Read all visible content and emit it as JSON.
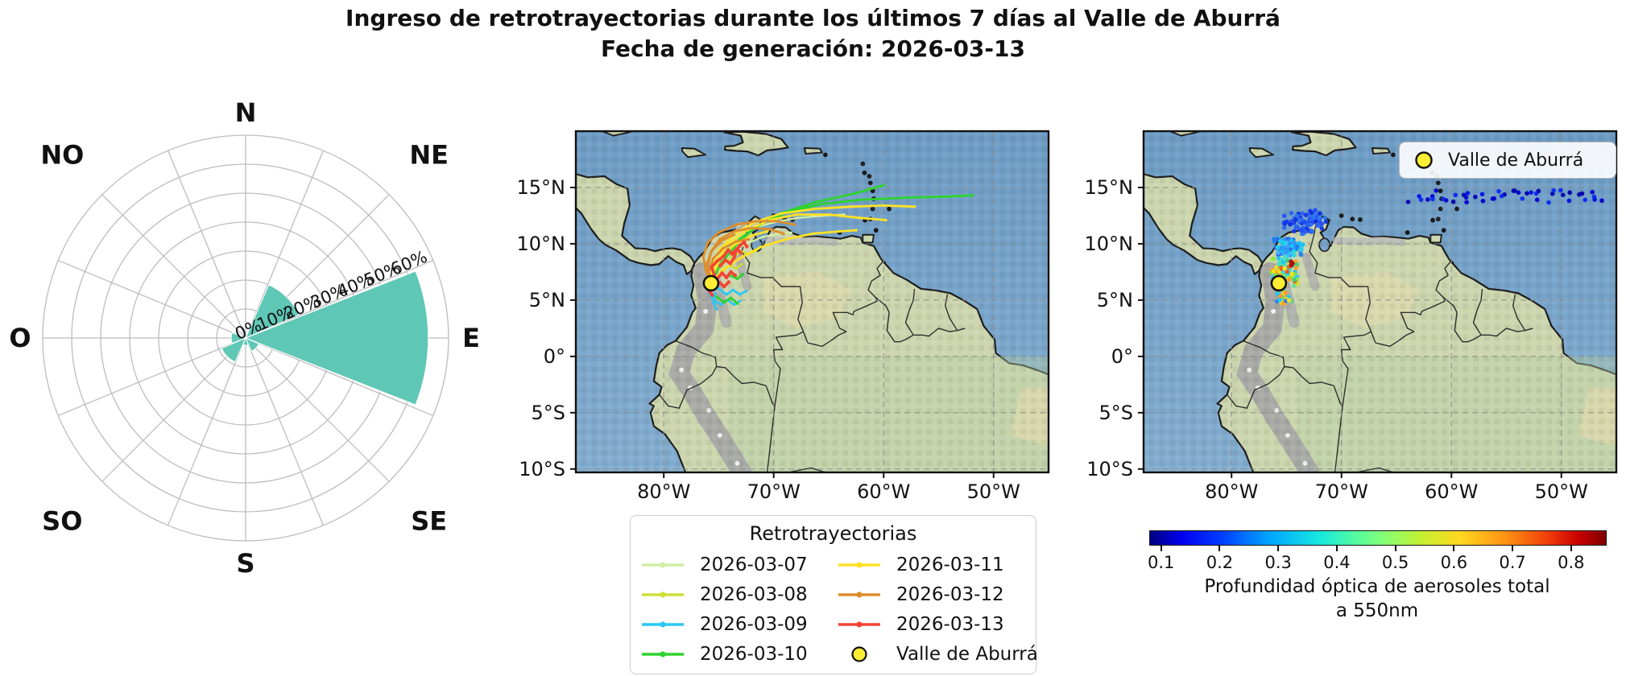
{
  "header": {
    "title_line1": "Ingreso de retrotrayectorias durante los últimos 7 días al Valle de Aburrá",
    "title_line2": "Fecha de generación: 2026-03-13"
  },
  "colors": {
    "rose_petal": "#5fc7b5",
    "ocean_top": "#6d9cc5",
    "ocean_bottom": "#83adcf",
    "land": "#ccd6ae",
    "marker_yellow": "#ffee33",
    "grid_gray": "#999999"
  },
  "chart_data": [
    {
      "type": "windrose",
      "direction_labels": [
        "N",
        "NE",
        "E",
        "SE",
        "S",
        "SO",
        "O",
        "NO"
      ],
      "ring_labels": [
        "0%",
        "10%",
        "20%",
        "30%",
        "40%",
        "50%",
        "60%"
      ],
      "ring_step_pct": 10,
      "values_pct": {
        "N": 0,
        "NE": 20,
        "E": 63,
        "SE": 5,
        "S": 2.5,
        "SO": 9,
        "O": 5,
        "NO": 0
      },
      "petal_color": "#5fc7b5",
      "legend_position": "radial labels along ENE spoke"
    },
    {
      "type": "map-trajectories",
      "legend_title": "Retrotrayectorias",
      "marker": {
        "label": "Valle de Aburrá",
        "lon": -75.7,
        "lat": 6.5,
        "color": "#ffee33"
      },
      "xticks": [
        {
          "label": "80°W",
          "lon": -80
        },
        {
          "label": "70°W",
          "lon": -70
        },
        {
          "label": "60°W",
          "lon": -60
        },
        {
          "label": "50°W",
          "lon": -50
        }
      ],
      "yticks": [
        {
          "label": "15°N",
          "lat": 15
        },
        {
          "label": "10°N",
          "lat": 10
        },
        {
          "label": "5°N",
          "lat": 5
        },
        {
          "label": "0°",
          "lat": 0
        },
        {
          "label": "5°S",
          "lat": -5
        },
        {
          "label": "10°S",
          "lat": -10
        }
      ],
      "extent": {
        "lon_west": -88,
        "lon_east": -45,
        "lat_north": 20,
        "lat_south": -10.3
      },
      "series": [
        {
          "label": "2026-03-07",
          "color": "#d2eda4",
          "width": 2.4,
          "paths": [
            [
              [
                -75.7,
                6.5
              ],
              [
                -75.6,
                7.9
              ],
              [
                -75.0,
                9.3
              ],
              [
                -73.8,
                10.5
              ],
              [
                -72.2,
                11.3
              ],
              [
                -70.0,
                11.9
              ],
              [
                -67.8,
                12.3
              ],
              [
                -65.5,
                12.5
              ],
              [
                -63.6,
                12.6
              ]
            ],
            [
              [
                -75.7,
                6.5
              ],
              [
                -75.0,
                8.0
              ],
              [
                -73.9,
                9.2
              ],
              [
                -72.5,
                10.0
              ],
              [
                -71.0,
                10.6
              ],
              [
                -69.6,
                10.9
              ],
              [
                -68.4,
                11.0
              ]
            ]
          ]
        },
        {
          "label": "2026-03-08",
          "color": "#cddd3a",
          "width": 2.6,
          "paths": [
            [
              [
                -75.7,
                6.5
              ],
              [
                -75.2,
                7.5
              ],
              [
                -74.5,
                8.3
              ],
              [
                -73.7,
                8.9
              ],
              [
                -72.9,
                9.3
              ],
              [
                -72.2,
                9.1
              ],
              [
                -71.6,
                9.4
              ]
            ],
            [
              [
                -74.6,
                7.6
              ],
              [
                -74.0,
                8.1
              ],
              [
                -73.4,
                7.8
              ],
              [
                -72.9,
                8.2
              ]
            ]
          ]
        },
        {
          "label": "2026-03-09",
          "color": "#2bc8f5",
          "width": 2.8,
          "paths": [
            [
              [
                -75.7,
                6.5
              ],
              [
                -75.9,
                5.7
              ],
              [
                -75.5,
                5.0
              ],
              [
                -74.8,
                4.6
              ],
              [
                -74.2,
                5.0
              ],
              [
                -73.6,
                4.6
              ],
              [
                -73.1,
                4.9
              ]
            ],
            [
              [
                -75.7,
                6.5
              ],
              [
                -75.0,
                6.0
              ],
              [
                -74.3,
                5.5
              ],
              [
                -73.7,
                5.9
              ],
              [
                -73.1,
                5.5
              ],
              [
                -72.5,
                5.8
              ]
            ],
            [
              [
                -75.3,
                5.6
              ],
              [
                -75.5,
                4.8
              ],
              [
                -75.2,
                4.2
              ]
            ]
          ]
        },
        {
          "label": "2026-03-10",
          "color": "#2ed32e",
          "width": 2.8,
          "paths": [
            [
              [
                -75.7,
                6.5
              ],
              [
                -75.3,
                7.9
              ],
              [
                -74.4,
                9.2
              ],
              [
                -73.1,
                10.4
              ],
              [
                -71.3,
                11.7
              ],
              [
                -68.8,
                12.8
              ],
              [
                -65.8,
                13.5
              ],
              [
                -62.2,
                13.9
              ],
              [
                -58.0,
                14.1
              ],
              [
                -54.0,
                14.2
              ],
              [
                -51.9,
                14.3
              ]
            ],
            [
              [
                -75.7,
                6.5
              ],
              [
                -74.9,
                8.1
              ],
              [
                -73.6,
                9.7
              ],
              [
                -71.9,
                11.3
              ],
              [
                -69.4,
                12.7
              ],
              [
                -66.2,
                13.7
              ],
              [
                -62.5,
                14.5
              ],
              [
                -60.0,
                15.2
              ]
            ],
            [
              [
                -75.2,
                5.3
              ],
              [
                -74.5,
                4.8
              ],
              [
                -73.9,
                5.2
              ],
              [
                -73.3,
                4.7
              ]
            ],
            [
              [
                -74.0,
                7.2
              ],
              [
                -73.3,
                6.9
              ],
              [
                -72.8,
                7.3
              ]
            ]
          ]
        },
        {
          "label": "2026-03-11",
          "color": "#ffe226",
          "width": 2.8,
          "paths": [
            [
              [
                -75.7,
                6.5
              ],
              [
                -75.6,
                8.1
              ],
              [
                -74.9,
                9.5
              ],
              [
                -73.6,
                10.8
              ],
              [
                -71.8,
                11.9
              ],
              [
                -69.3,
                12.7
              ],
              [
                -66.3,
                13.1
              ],
              [
                -63.0,
                13.3
              ],
              [
                -60.0,
                13.4
              ],
              [
                -57.2,
                13.3
              ]
            ],
            [
              [
                -75.7,
                6.5
              ],
              [
                -75.2,
                8.4
              ],
              [
                -74.2,
                9.9
              ],
              [
                -72.6,
                11.1
              ],
              [
                -70.4,
                12.1
              ],
              [
                -67.9,
                12.6
              ],
              [
                -65.0,
                12.6
              ],
              [
                -62.2,
                12.3
              ],
              [
                -59.8,
                12.1
              ]
            ],
            [
              [
                -75.7,
                6.5
              ],
              [
                -74.6,
                7.7
              ],
              [
                -73.1,
                8.7
              ],
              [
                -71.2,
                9.7
              ],
              [
                -68.9,
                10.4
              ],
              [
                -66.4,
                10.9
              ],
              [
                -64.0,
                11.1
              ],
              [
                -62.5,
                11.2
              ]
            ],
            [
              [
                -75.5,
                7.4
              ],
              [
                -74.8,
                8.8
              ],
              [
                -73.6,
                9.9
              ],
              [
                -72.1,
                10.7
              ],
              [
                -70.6,
                11.1
              ]
            ]
          ]
        },
        {
          "label": "2026-03-12",
          "color": "#dd8e2c",
          "width": 2.8,
          "paths": [
            [
              [
                -75.7,
                6.5
              ],
              [
                -76.2,
                7.7
              ],
              [
                -76.4,
                8.9
              ],
              [
                -76.0,
                10.1
              ],
              [
                -75.0,
                11.0
              ],
              [
                -73.4,
                11.7
              ],
              [
                -71.6,
                12.0
              ],
              [
                -69.7,
                12.0
              ],
              [
                -68.1,
                11.7
              ]
            ],
            [
              [
                -75.7,
                6.5
              ],
              [
                -76.0,
                7.9
              ],
              [
                -75.7,
                9.3
              ],
              [
                -74.9,
                10.4
              ],
              [
                -73.6,
                11.1
              ],
              [
                -72.0,
                11.4
              ],
              [
                -70.4,
                11.3
              ],
              [
                -69.1,
                10.9
              ]
            ],
            [
              [
                -75.7,
                6.5
              ],
              [
                -75.9,
                7.4
              ],
              [
                -75.5,
                8.7
              ],
              [
                -74.6,
                9.6
              ],
              [
                -73.4,
                10.2
              ],
              [
                -72.3,
                10.4
              ]
            ],
            [
              [
                -76.1,
                8.2
              ],
              [
                -75.6,
                9.4
              ],
              [
                -74.7,
                10.3
              ],
              [
                -73.6,
                10.8
              ]
            ]
          ]
        },
        {
          "label": "2026-03-13",
          "color": "#f44336",
          "width": 3.6,
          "paths": [
            [
              [
                -75.7,
                6.5
              ],
              [
                -75.4,
                7.2
              ],
              [
                -75.65,
                7.95
              ],
              [
                -75.1,
                8.5
              ],
              [
                -74.55,
                8.9
              ],
              [
                -74.15,
                9.45
              ],
              [
                -73.8,
                9.1
              ],
              [
                -73.35,
                9.55
              ],
              [
                -73.0,
                9.2
              ]
            ],
            [
              [
                -75.7,
                6.5
              ],
              [
                -75.15,
                6.9
              ],
              [
                -74.7,
                7.4
              ],
              [
                -74.3,
                7.0
              ],
              [
                -73.9,
                7.5
              ],
              [
                -73.5,
                7.2
              ]
            ],
            [
              [
                -75.7,
                6.5
              ],
              [
                -75.95,
                5.9
              ],
              [
                -75.6,
                5.45
              ]
            ],
            [
              [
                -74.85,
                8.05
              ],
              [
                -74.4,
                8.55
              ],
              [
                -73.95,
                8.25
              ],
              [
                -73.6,
                8.75
              ],
              [
                -73.45,
                9.35
              ],
              [
                -73.1,
                9.8
              ],
              [
                -72.7,
                10.15
              ],
              [
                -72.45,
                9.75
              ]
            ],
            [
              [
                -75.3,
                6.2
              ],
              [
                -74.9,
                6.55
              ],
              [
                -74.5,
                6.2
              ],
              [
                -74.1,
                6.6
              ]
            ]
          ]
        }
      ]
    },
    {
      "type": "map-scatter-aod",
      "legend_label": "Valle de Aburrá",
      "marker": {
        "label": "Valle de Aburrá",
        "lon": -75.7,
        "lat": 6.5,
        "color": "#ffee33"
      },
      "xticks": [
        {
          "label": "80°W",
          "lon": -80
        },
        {
          "label": "70°W",
          "lon": -70
        },
        {
          "label": "60°W",
          "lon": -60
        },
        {
          "label": "50°W",
          "lon": -50
        }
      ],
      "yticks": [
        {
          "label": "15°N",
          "lat": 15
        },
        {
          "label": "10°N",
          "lat": 10
        },
        {
          "label": "5°N",
          "lat": 5
        },
        {
          "label": "0°",
          "lat": 0
        },
        {
          "label": "5°S",
          "lat": -5
        },
        {
          "label": "10°S",
          "lat": -10
        }
      ],
      "extent": {
        "lon_west": -88,
        "lon_east": -45,
        "lat_north": 20,
        "lat_south": -10.3
      },
      "colorbar": {
        "ticks": [
          "0.1",
          "0.2",
          "0.3",
          "0.4",
          "0.5",
          "0.6",
          "0.7",
          "0.8"
        ],
        "tick_values": [
          0.1,
          0.2,
          0.3,
          0.4,
          0.5,
          0.6,
          0.7,
          0.8
        ],
        "label_line1": "Profundidad óptica de aerosoles total",
        "label_line2": "a 550nm",
        "colormap": "jet",
        "range_min": 0.08,
        "range_max": 0.87
      },
      "clusters": [
        {
          "name": "caribbean-trail",
          "kind": "band",
          "lon_from": -63.5,
          "lon_to": -46.3,
          "lat": 14.2,
          "lat_jitter": 0.55,
          "count": 46,
          "aod": "~0.1",
          "colors": [
            "#0000cd",
            "#0013e6",
            "#0a28f0",
            "#0000b0"
          ]
        },
        {
          "name": "caribbean-north",
          "kind": "blob",
          "lon": -73.4,
          "lat": 11.9,
          "s_lon": 2.3,
          "s_lat": 1.25,
          "count": 80,
          "aod": "0.1-0.2",
          "colors": [
            "#1536ea",
            "#204ef0",
            "#2b62ee",
            "#0f2cd8",
            "#2d74f2"
          ]
        },
        {
          "name": "coast",
          "kind": "blob",
          "lon": -74.9,
          "lat": 9.6,
          "s_lon": 1.6,
          "s_lat": 1.1,
          "count": 85,
          "aod": "0.2-0.3",
          "colors": [
            "#2b62ee",
            "#2e96f5",
            "#19c3f2",
            "#45b4fb",
            "#1f7ff0",
            "#20d8e8"
          ]
        },
        {
          "name": "core",
          "kind": "blob",
          "lon": -75.2,
          "lat": 7.6,
          "s_lon": 1.35,
          "s_lat": 1.5,
          "count": 100,
          "aod": "0.3-0.7",
          "colors": [
            "#1fc8f0",
            "#3fe0cf",
            "#35d17e",
            "#86e92f",
            "#cdeb1f",
            "#ffe01e",
            "#ff9c1e",
            "#f25a1e",
            "#27b4f2",
            "#35c8ff",
            "#57e0a0"
          ]
        },
        {
          "name": "south",
          "kind": "blob",
          "lon": -75.2,
          "lat": 5.2,
          "s_lon": 0.75,
          "s_lat": 0.85,
          "count": 26,
          "aod": "0.3-0.6",
          "colors": [
            "#1fc8f0",
            "#57d890",
            "#ffe01e",
            "#ff9c1e",
            "#2b80ee"
          ]
        },
        {
          "name": "max-aod",
          "kind": "blob",
          "lon": -74.55,
          "lat": 8.35,
          "s_lon": 0.12,
          "s_lat": 0.3,
          "count": 4,
          "aod": "~0.85",
          "colors": [
            "#b01010",
            "#8f0606",
            "#e03010"
          ]
        }
      ]
    }
  ]
}
